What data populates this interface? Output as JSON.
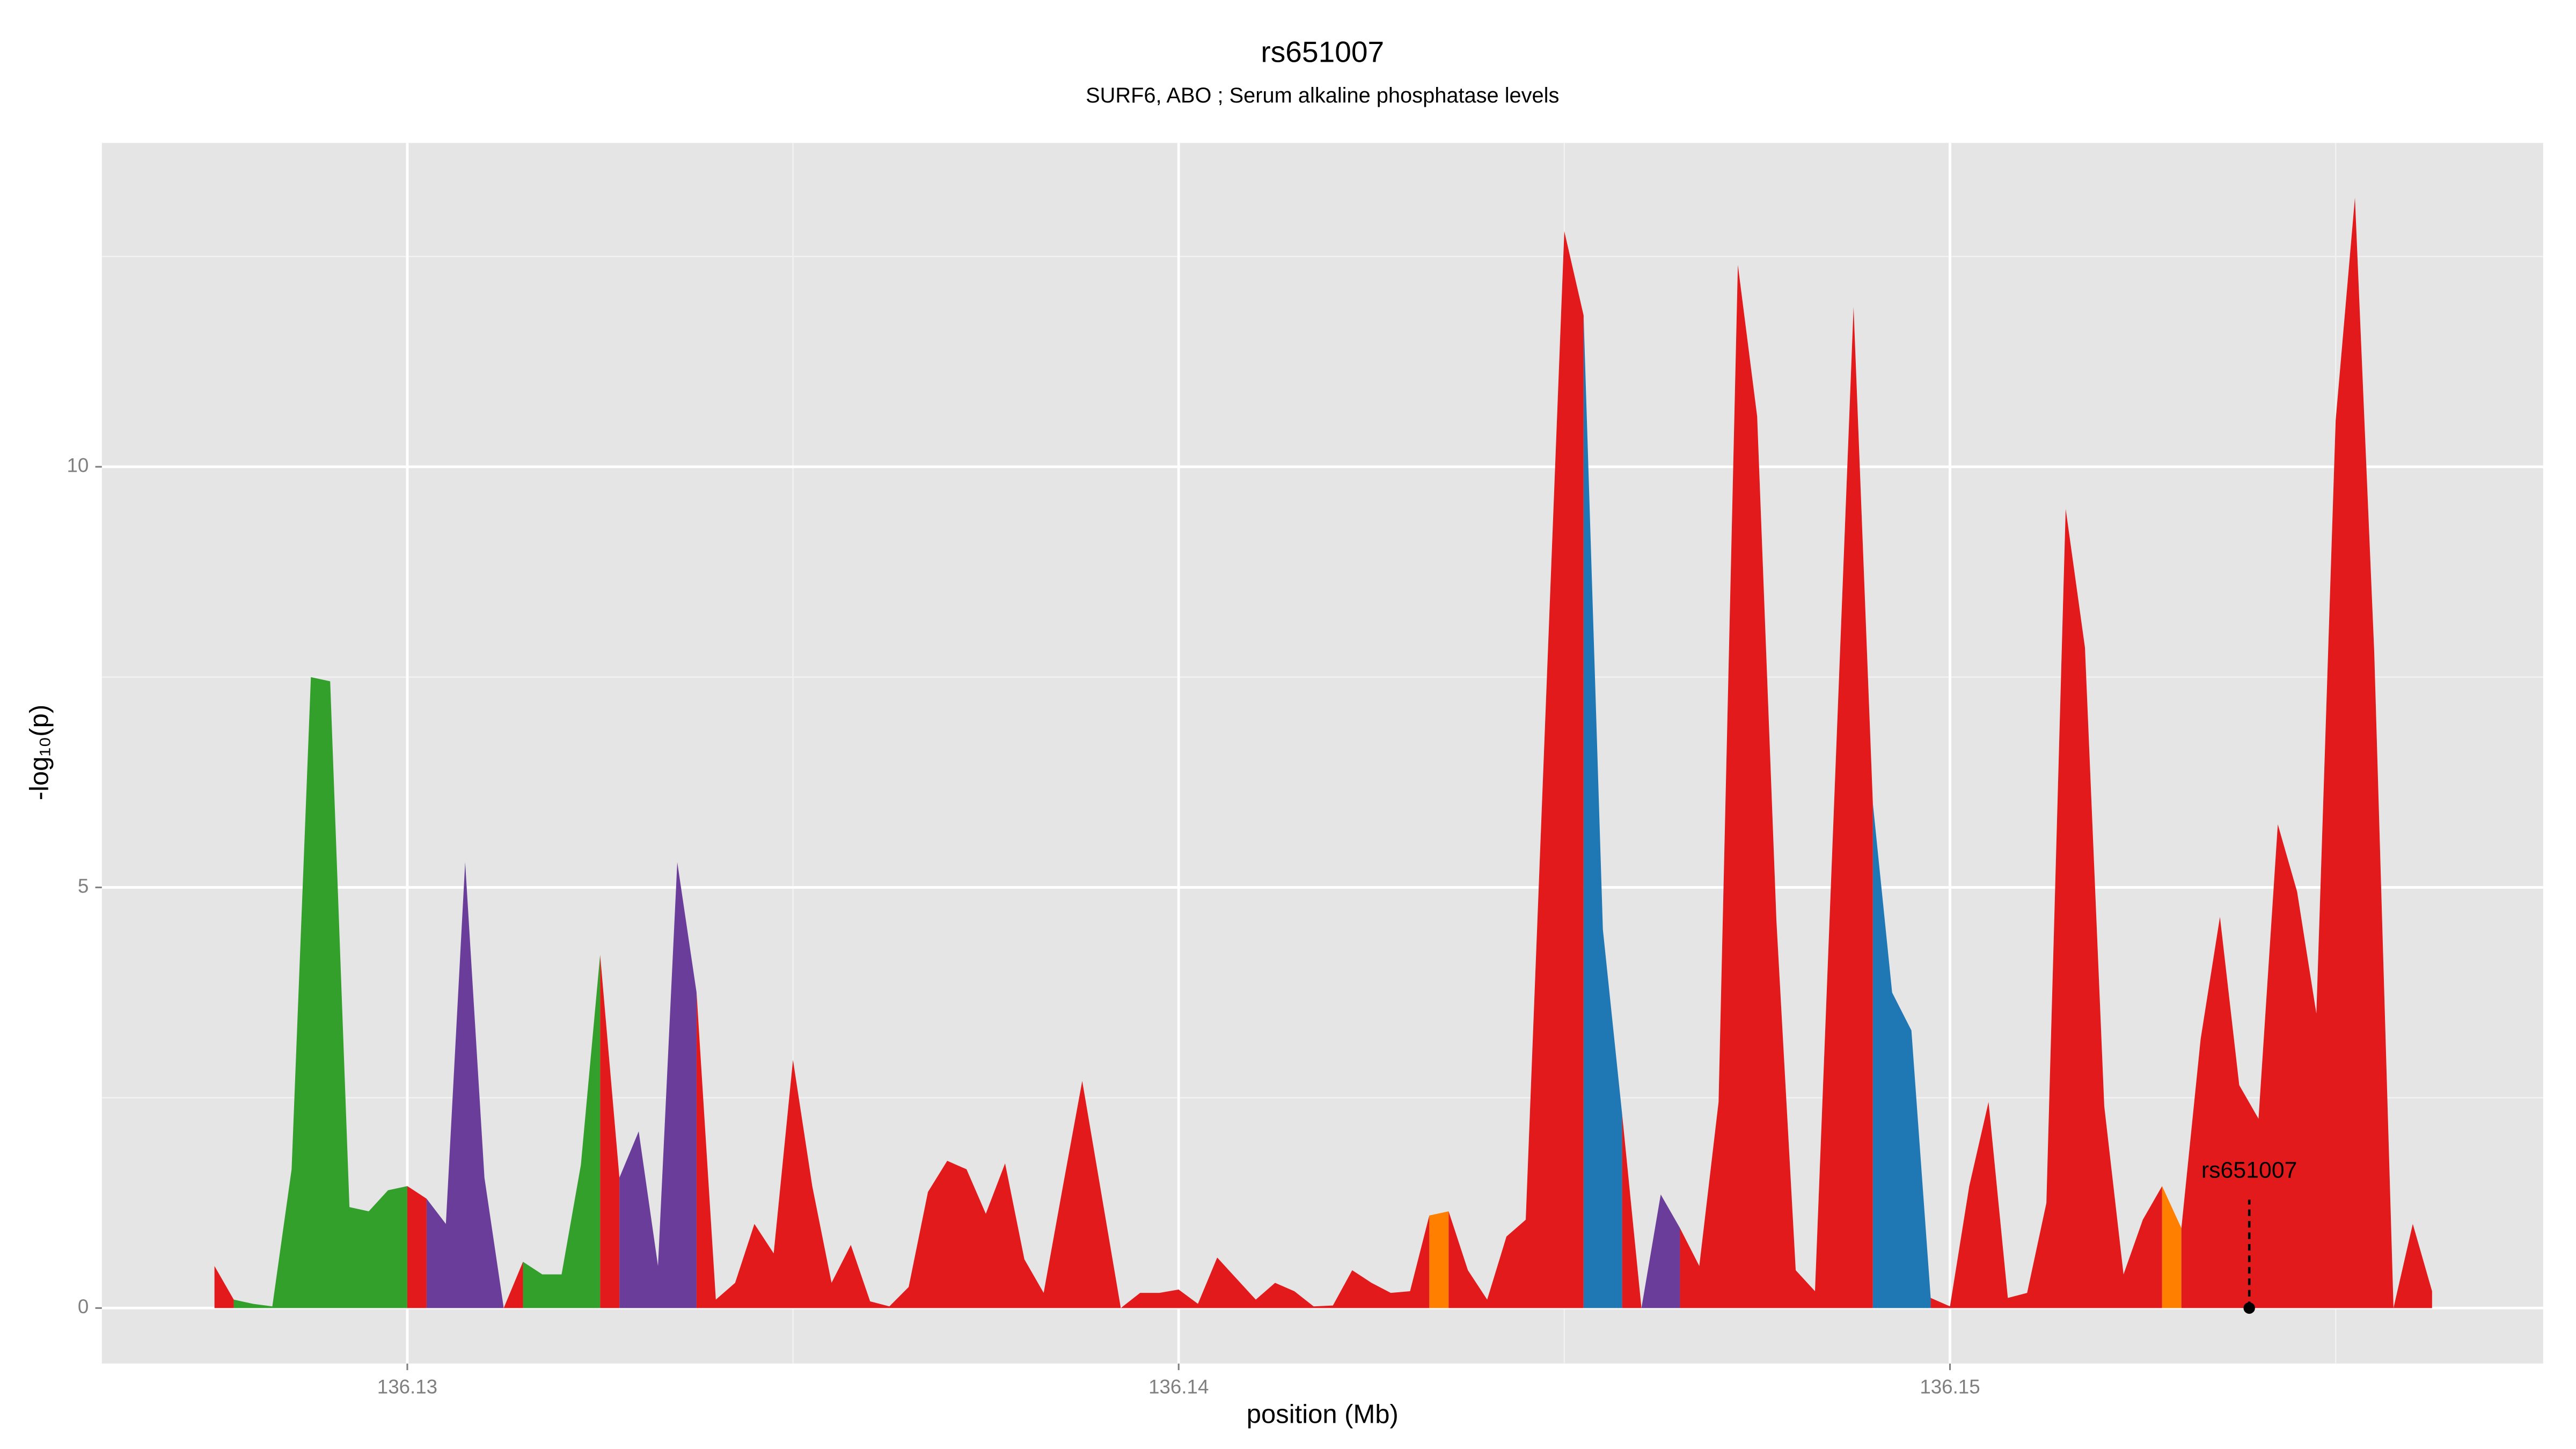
{
  "chart_data": {
    "type": "area",
    "title": "rs651007",
    "subtitle": "SURF6, ABO ; Serum alkaline phosphatase levels",
    "xlabel": "position (Mb)",
    "ylabel": "-log₁₀(p)",
    "xlim": [
      136.12604,
      136.15769
    ],
    "ylim": [
      -0.66,
      13.85
    ],
    "xticks": [
      136.13,
      136.14,
      136.15
    ],
    "yticks": [
      0,
      5,
      10
    ],
    "x_minor_ticks": [
      136.135,
      136.145,
      136.155
    ],
    "y_minor_ticks": [
      2.5,
      7.5,
      12.5
    ],
    "grid": true,
    "series": [
      {
        "color": "#e31a1c",
        "x": [
          136.1275,
          136.12775
        ],
        "values": [
          0.5,
          0.1
        ]
      },
      {
        "color": "#33a02c",
        "x": [
          136.12775,
          136.128,
          136.12825,
          136.1285,
          136.12875,
          136.129,
          136.12925,
          136.1295,
          136.12975,
          136.13
        ],
        "values": [
          0.1,
          0.05,
          0.02,
          1.65,
          7.5,
          7.45,
          1.2,
          1.15,
          1.4,
          1.45
        ]
      },
      {
        "color": "#e31a1c",
        "x": [
          136.13,
          136.13025
        ],
        "values": [
          1.45,
          1.3
        ]
      },
      {
        "color": "#6a3d9a",
        "x": [
          136.13025,
          136.1305,
          136.13075,
          136.131,
          136.13125
        ],
        "values": [
          1.3,
          1.0,
          5.3,
          1.55,
          0
        ]
      },
      {
        "color": "#e31a1c",
        "x": [
          136.13125,
          136.1315
        ],
        "values": [
          0,
          0.55
        ]
      },
      {
        "color": "#33a02c",
        "x": [
          136.1315,
          136.13175,
          136.132,
          136.13225,
          136.1325
        ],
        "values": [
          0.55,
          0.4,
          0.4,
          1.7,
          4.2
        ]
      },
      {
        "color": "#e31a1c",
        "x": [
          136.1325,
          136.13275
        ],
        "values": [
          4.2,
          1.55
        ]
      },
      {
        "color": "#6a3d9a",
        "x": [
          136.13275,
          136.133,
          136.13325,
          136.1335,
          136.13375
        ],
        "values": [
          1.55,
          2.1,
          0.5,
          5.3,
          3.75
        ]
      },
      {
        "color": "#e31a1c",
        "x": [
          136.13375,
          136.134,
          136.13425,
          136.1345,
          136.13475,
          136.135,
          136.13525,
          136.1355,
          136.13575,
          136.136,
          136.13625,
          136.1365,
          136.13675,
          136.137,
          136.13725,
          136.1375,
          136.13775,
          136.138,
          136.13825,
          136.1385,
          136.13875,
          136.139,
          136.13925,
          136.1395,
          136.13975,
          136.14,
          136.14025,
          136.1405,
          136.14075,
          136.141,
          136.14125,
          136.1415,
          136.14175,
          136.142,
          136.14225,
          136.1425,
          136.14275,
          136.143,
          136.14325
        ],
        "values": [
          3.75,
          0.1,
          0.3,
          1.0,
          0.65,
          2.95,
          1.45,
          0.3,
          0.75,
          0.08,
          0.02,
          0.25,
          1.38,
          1.75,
          1.65,
          1.12,
          1.72,
          0.58,
          0.18,
          1.45,
          2.7,
          1.35,
          0,
          0.18,
          0.18,
          0.22,
          0.05,
          0.6,
          0.35,
          0.1,
          0.3,
          0.2,
          0.02,
          0.03,
          0.45,
          0.3,
          0.18,
          0.2,
          1.1
        ]
      },
      {
        "color": "#ff7f00",
        "x": [
          136.14325,
          136.1435
        ],
        "values": [
          1.1,
          1.15
        ]
      },
      {
        "color": "#e31a1c",
        "x": [
          136.1435,
          136.14375,
          136.144,
          136.14425,
          136.1445,
          136.145,
          136.14525
        ],
        "values": [
          1.15,
          0.45,
          0.1,
          0.85,
          1.05,
          12.8,
          11.8
        ]
      },
      {
        "color": "#1f78b4",
        "x": [
          136.14525,
          136.1455,
          136.14575
        ],
        "values": [
          11.8,
          4.5,
          2.3
        ]
      },
      {
        "color": "#e31a1c",
        "x": [
          136.14575,
          136.146
        ],
        "values": [
          2.3,
          0
        ]
      },
      {
        "color": "#6a3d9a",
        "x": [
          136.146,
          136.14625,
          136.1465
        ],
        "values": [
          0,
          1.35,
          0.95
        ]
      },
      {
        "color": "#e31a1c",
        "x": [
          136.1465,
          136.14675,
          136.147,
          136.14725,
          136.1475,
          136.14775,
          136.148,
          136.14825,
          136.14875,
          136.149
        ],
        "values": [
          0.95,
          0.5,
          2.45,
          12.4,
          10.6,
          4.6,
          0.45,
          0.2,
          11.9,
          6.0
        ]
      },
      {
        "color": "#1f78b4",
        "x": [
          136.149,
          136.14925,
          136.1495,
          136.14975
        ],
        "values": [
          6.0,
          3.75,
          3.3,
          0.12
        ]
      },
      {
        "color": "#e31a1c",
        "x": [
          136.14975,
          136.15,
          136.15025,
          136.1505,
          136.15075,
          136.151,
          136.15125,
          136.1515,
          136.15175,
          136.152,
          136.15225,
          136.1525,
          136.15275
        ],
        "values": [
          0.12,
          0.02,
          1.45,
          2.45,
          0.12,
          0.18,
          1.25,
          9.5,
          7.85,
          2.4,
          0.4,
          1.05,
          1.45
        ]
      },
      {
        "color": "#ff7f00",
        "x": [
          136.15275,
          136.153
        ],
        "values": [
          1.45,
          0.95
        ]
      },
      {
        "color": "#e31a1c",
        "x": [
          136.153,
          136.15325,
          136.1535,
          136.15375,
          136.154,
          136.15425,
          136.1545,
          136.15475,
          136.155,
          136.15525,
          136.1555,
          136.15575,
          136.156,
          136.15625
        ],
        "values": [
          0.95,
          3.2,
          4.65,
          2.65,
          2.25,
          5.75,
          4.95,
          3.5,
          10.55,
          13.2,
          7.8,
          0,
          1.0,
          0.2
        ]
      }
    ],
    "annotations": [
      {
        "text": "rs651007",
        "x": 136.15388,
        "y": 0
      }
    ]
  }
}
